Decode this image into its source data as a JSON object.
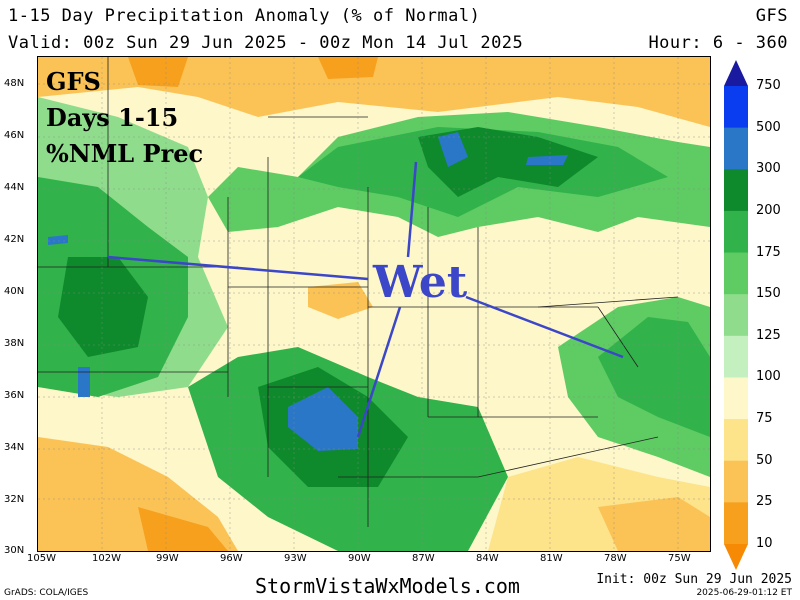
{
  "header": {
    "title": "1-15 Day Precipitation Anomaly (% of Normal)",
    "model": "GFS",
    "valid": "Valid: 00z Sun 29 Jun 2025 - 00z Mon 14 Jul 2025",
    "hour": "Hour: 6 - 360"
  },
  "overlay": {
    "line1": "GFS",
    "line2": "Days 1-15",
    "line3": "%NML Prec",
    "annotation": "Wet",
    "annotation_color": "#3b46c8"
  },
  "axes": {
    "lat_labels": [
      "48N",
      "46N",
      "44N",
      "42N",
      "40N",
      "38N",
      "36N",
      "34N",
      "32N",
      "30N"
    ],
    "lon_labels": [
      "105W",
      "102W",
      "99W",
      "96W",
      "93W",
      "90W",
      "87W",
      "84W",
      "81W",
      "78W",
      "75W"
    ]
  },
  "colorbar": {
    "labels": [
      "750",
      "500",
      "300",
      "200",
      "175",
      "150",
      "125",
      "100",
      "75",
      "50",
      "25",
      "10"
    ],
    "colors": [
      "#1a1aa0",
      "#0a3cf0",
      "#2a77c8",
      "#0e8a2c",
      "#31b24a",
      "#5ecb63",
      "#8fdd8c",
      "#c4efbf",
      "#fdf7c9",
      "#fde38a",
      "#fbc356",
      "#f7a01e",
      "#f68a05"
    ]
  },
  "footer": {
    "site": "StormVistaWxModels.com",
    "init": "Init: 00z Sun 29 Jun 2025",
    "stamp": "2025-06-29-01:12 ET",
    "credit": "GrADS: COLA/IGES"
  }
}
